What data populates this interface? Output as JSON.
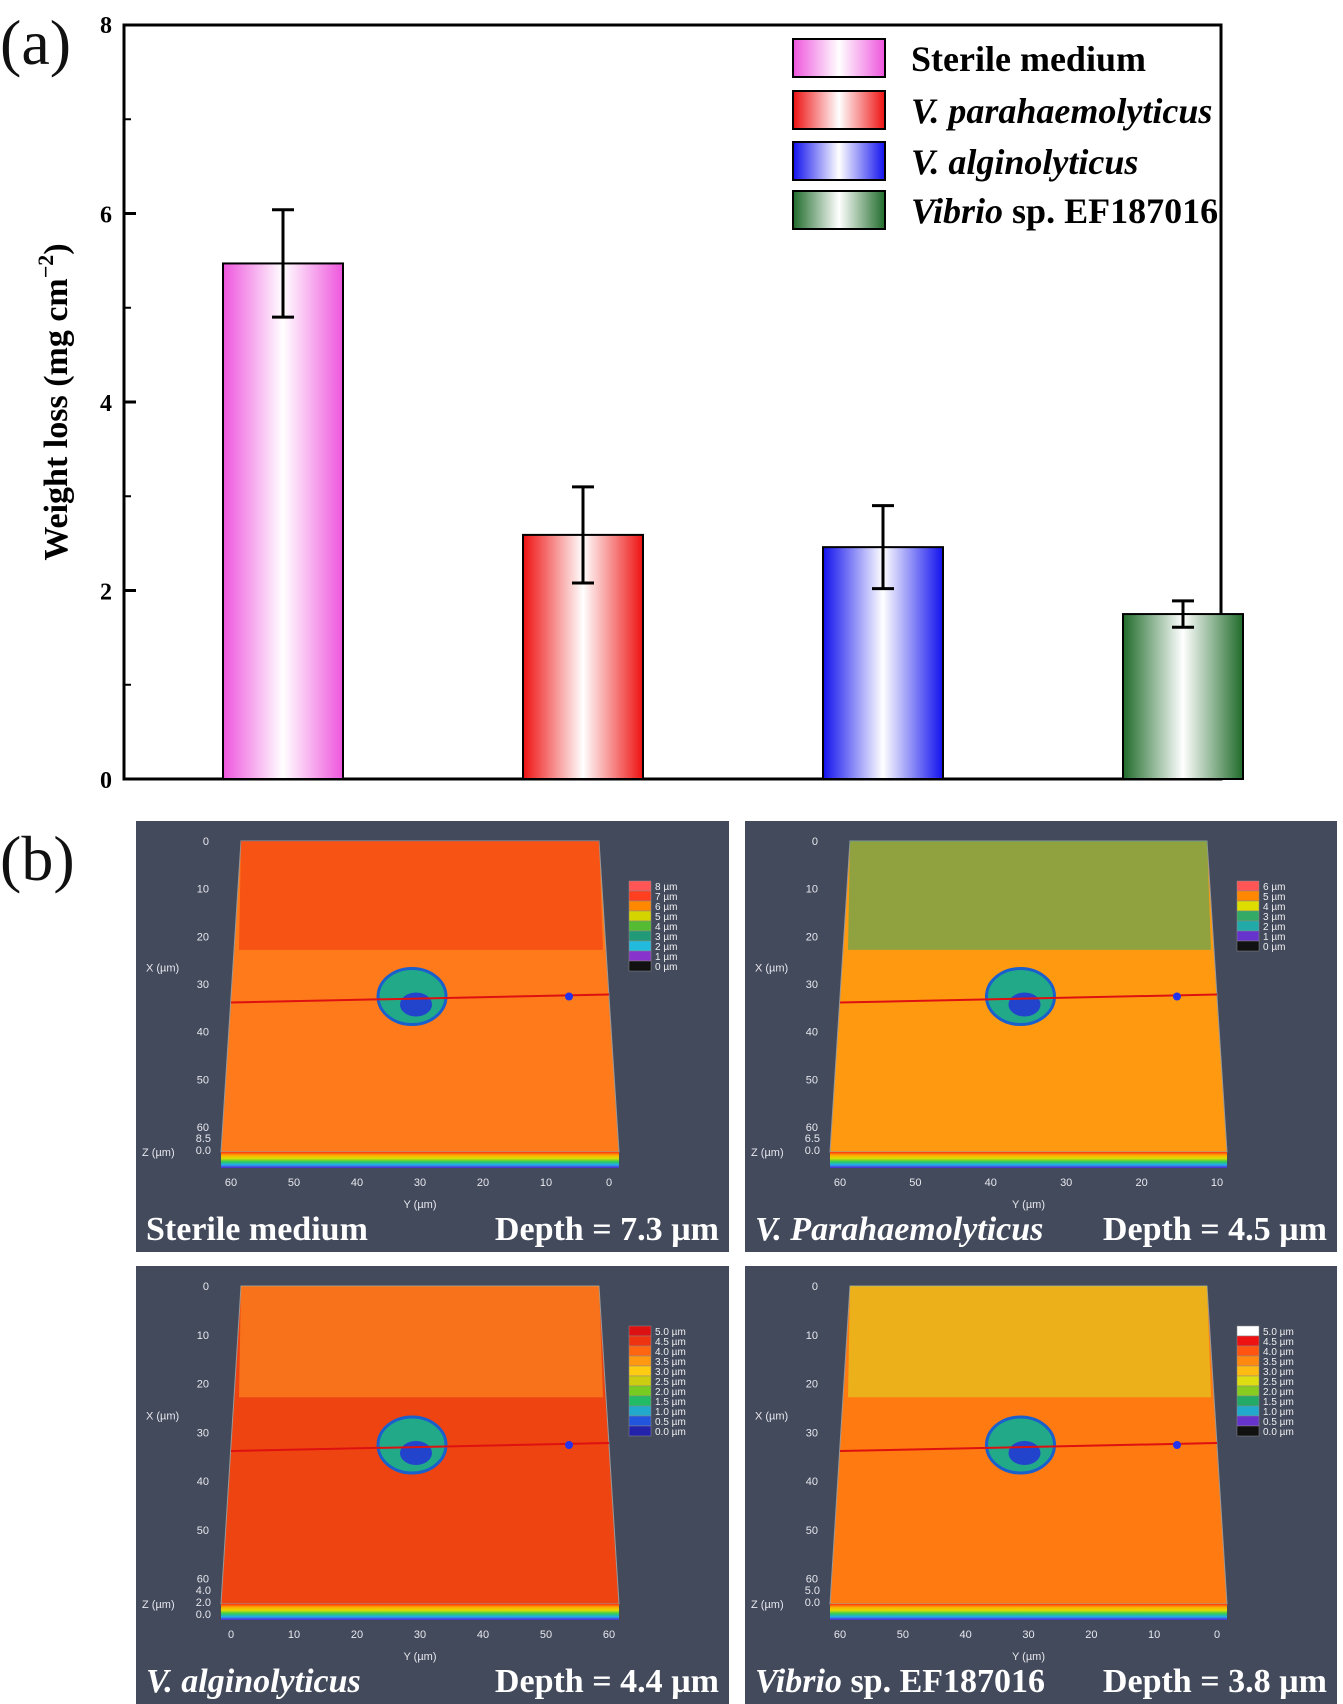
{
  "panel_a_label": "(a)",
  "panel_b_label": "(b)",
  "chart_data": {
    "type": "bar",
    "title": "",
    "xlabel": "",
    "ylabel_main": "Weight loss (mg cm",
    "ylabel_sup": "−2",
    "ylabel_close": ")",
    "ylim": [
      0,
      8
    ],
    "yticks": [
      0,
      2,
      4,
      6,
      8
    ],
    "categories": [
      "Sterile medium",
      "V. parahaemolyticus",
      "V. alginolyticus",
      "Vibrio sp. EF187016"
    ],
    "values": [
      5.47,
      2.59,
      2.46,
      1.75
    ],
    "errors": [
      0.57,
      0.51,
      0.44,
      0.14
    ],
    "colors": [
      "#ee66dd",
      "#ee2222",
      "#2222ee",
      "#2e7d32"
    ],
    "legend": {
      "position": "top-right",
      "entries": [
        {
          "parts": [
            {
              "text": "Sterile medium",
              "italic": false
            }
          ]
        },
        {
          "parts": [
            {
              "text": "V. parahaemolyticus",
              "italic": true
            }
          ]
        },
        {
          "parts": [
            {
              "text": "V. alginolyticus",
              "italic": true
            }
          ]
        },
        {
          "parts": [
            {
              "text": "Vibrio",
              "italic": true
            },
            {
              "text": " sp. EF187016",
              "italic": false
            }
          ]
        }
      ]
    }
  },
  "panels_b": [
    {
      "name_parts": [
        {
          "text": "Sterile medium",
          "italic": false
        }
      ],
      "depth": "Depth = 7.3 µm",
      "scale_labels": [
        "8 µm",
        "7 µm",
        "6 µm",
        "5 µm",
        "4 µm",
        "3 µm",
        "2 µm",
        "1 µm",
        "0 µm"
      ],
      "scale_colors": [
        "#ff5555",
        "#ff4020",
        "#ff8800",
        "#d4d400",
        "#55bb33",
        "#229977",
        "#22bbdd",
        "#8833cc",
        "#111111"
      ],
      "x_axis_title": "X (µm)",
      "x_axis_ticks": [
        "0",
        "10",
        "20",
        "30",
        "40",
        "50",
        "60"
      ],
      "y_axis_title": "Y (µm)",
      "y_axis_ticks": [
        "60",
        "50",
        "40",
        "30",
        "20",
        "10",
        "0"
      ],
      "z_axis_title": "Z (µm)",
      "z_axis_ticks": [
        "8.5",
        "0.0"
      ],
      "surface_color": "#ff7a1a",
      "surface_accent": "#ee3311"
    },
    {
      "name_parts": [
        {
          "text": "V. Parahaemolyticus",
          "italic": true
        }
      ],
      "depth": "Depth = 4.5 µm",
      "scale_labels": [
        "6 µm",
        "5 µm",
        "4 µm",
        "3 µm",
        "2 µm",
        "1 µm",
        "0 µm"
      ],
      "scale_colors": [
        "#ff5555",
        "#ff8800",
        "#dddd00",
        "#33aa66",
        "#22aaaa",
        "#6633cc",
        "#111111"
      ],
      "x_axis_title": "X (µm)",
      "x_axis_ticks": [
        "0",
        "10",
        "20",
        "30",
        "40",
        "50",
        "60"
      ],
      "y_axis_title": "Y (µm)",
      "y_axis_ticks": [
        "60",
        "50",
        "40",
        "30",
        "20",
        "10"
      ],
      "z_axis_title": "Z (µm)",
      "z_axis_ticks": [
        "6.5",
        "0.0"
      ],
      "surface_color": "#ff9a10",
      "surface_accent": "#33aa66"
    },
    {
      "name_parts": [
        {
          "text": "V. alginolyticus",
          "italic": true
        }
      ],
      "depth": "Depth = 4.4 µm",
      "scale_labels": [
        "5.0 µm",
        "4.5 µm",
        "4.0 µm",
        "3.5 µm",
        "3.0 µm",
        "2.5 µm",
        "2.0 µm",
        "1.5 µm",
        "1.0 µm",
        "0.5 µm",
        "0.0 µm"
      ],
      "scale_colors": [
        "#dd1111",
        "#ee3311",
        "#ff6611",
        "#ff9911",
        "#ffcc11",
        "#cccc11",
        "#77cc22",
        "#22bb66",
        "#22aacc",
        "#2255dd",
        "#2222aa"
      ],
      "x_axis_title": "Y (µm)",
      "x_axis_ticks": [
        "0",
        "10",
        "20",
        "30",
        "40",
        "50",
        "60"
      ],
      "y_axis_title": "X (µm)",
      "y_axis_ticks": [
        "0",
        "10",
        "20",
        "30",
        "40",
        "50",
        "60"
      ],
      "z_axis_title": "Z (µm)",
      "z_axis_ticks": [
        "4.0",
        "2.0",
        "0.0"
      ],
      "surface_color": "#ee4411",
      "surface_accent": "#ff9922"
    },
    {
      "name_parts": [
        {
          "text": "Vibrio",
          "italic": true
        },
        {
          "text": " sp. EF187016",
          "italic": false
        }
      ],
      "depth": "Depth = 3.8 µm",
      "scale_labels": [
        "5.0 µm",
        "4.5 µm",
        "4.0 µm",
        "3.5 µm",
        "3.0 µm",
        "2.5 µm",
        "2.0 µm",
        "1.5 µm",
        "1.0 µm",
        "0.5 µm",
        "0.0 µm"
      ],
      "scale_colors": [
        "#ffffff",
        "#ee1111",
        "#ff5511",
        "#ff8811",
        "#ffbb11",
        "#dddd11",
        "#88cc22",
        "#22aa66",
        "#22aacc",
        "#6633cc",
        "#111111"
      ],
      "x_axis_title": "X (µm)",
      "x_axis_ticks": [
        "0",
        "10",
        "20",
        "30",
        "40",
        "50",
        "60"
      ],
      "y_axis_title": "Y (µm)",
      "y_axis_ticks": [
        "60",
        "50",
        "40",
        "30",
        "20",
        "10",
        "0"
      ],
      "z_axis_title": "Z (µm)",
      "z_axis_ticks": [
        "5.0",
        "0.0"
      ],
      "surface_color": "#ff7a11",
      "surface_accent": "#dddd22"
    }
  ]
}
